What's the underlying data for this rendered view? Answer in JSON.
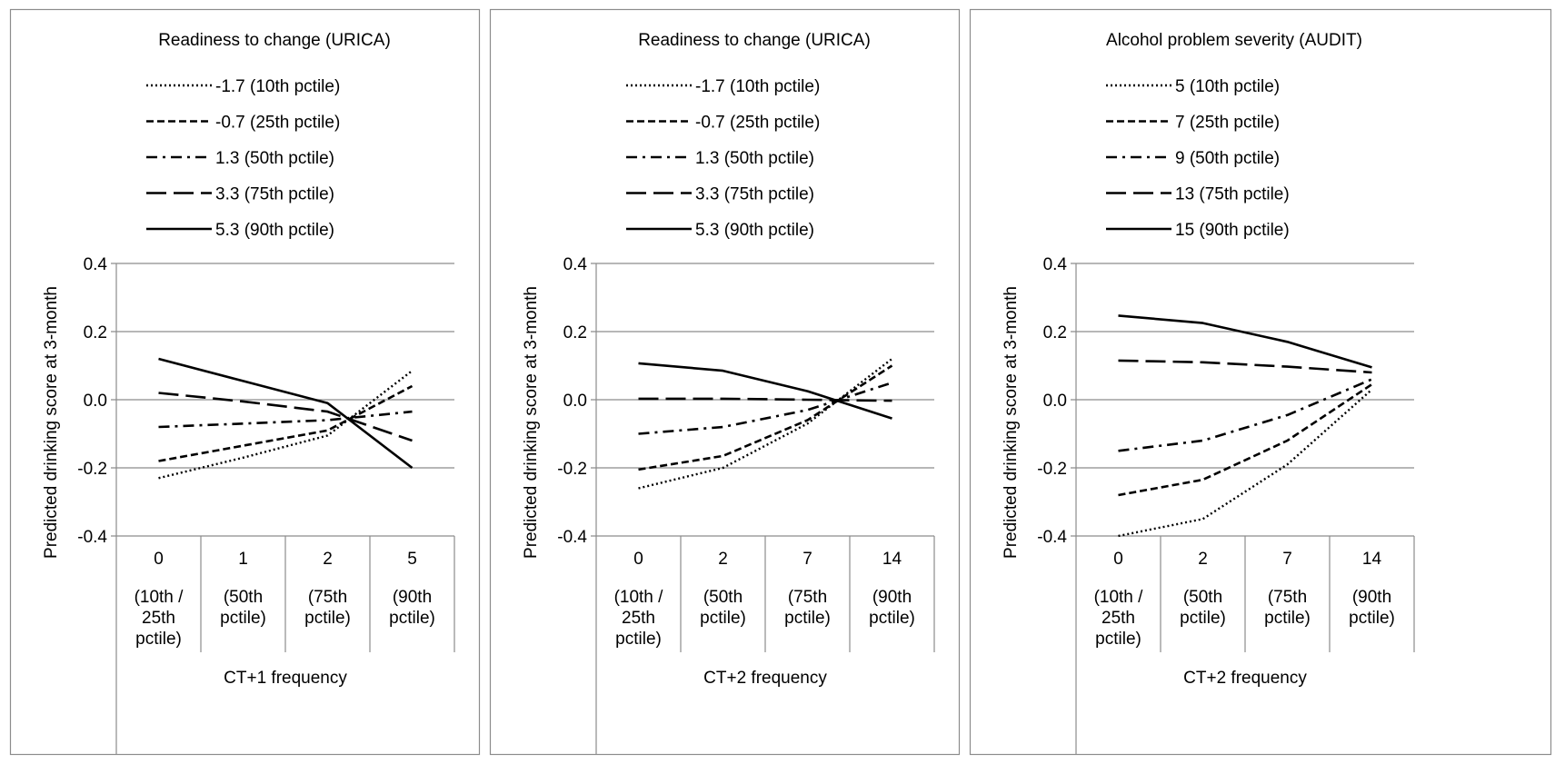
{
  "chart_data": [
    {
      "type": "line",
      "title": "Readiness to change (URICA)",
      "xlabel": "CT+1 frequency",
      "ylabel": "Predicted drinking score at 3-month",
      "ylim": [
        -0.4,
        0.4
      ],
      "y_ticks": [
        "0.4",
        "0.2",
        "0.0",
        "-0.2",
        "-0.4"
      ],
      "legend_position": "top",
      "grid": "horizontal",
      "categories": [
        {
          "value": "0",
          "sub": [
            "(10th /",
            "25th",
            "pctile)"
          ]
        },
        {
          "value": "1",
          "sub": [
            "(50th",
            "pctile)"
          ]
        },
        {
          "value": "2",
          "sub": [
            "(75th",
            "pctile)"
          ]
        },
        {
          "value": "5",
          "sub": [
            "(90th",
            "pctile)"
          ]
        }
      ],
      "series": [
        {
          "name": "-1.7  (10th pctile)",
          "style": "dotted",
          "values": [
            -0.23,
            -0.17,
            -0.105,
            0.085
          ]
        },
        {
          "name": "-0.7  (25th pctile)",
          "style": "short-dash",
          "values": [
            -0.18,
            -0.135,
            -0.09,
            0.04
          ]
        },
        {
          "name": "1.3  (50th pctile)",
          "style": "dash-dot",
          "values": [
            -0.08,
            -0.07,
            -0.06,
            -0.035
          ]
        },
        {
          "name": "3.3  (75th pctile)",
          "style": "long-dash",
          "values": [
            0.02,
            -0.005,
            -0.035,
            -0.12
          ]
        },
        {
          "name": "5.3  (90th pctile)",
          "style": "solid",
          "values": [
            0.12,
            0.055,
            -0.01,
            -0.2
          ]
        }
      ]
    },
    {
      "type": "line",
      "title": "Readiness to change (URICA)",
      "xlabel": "CT+2 frequency",
      "ylabel": "Predicted drinking score at 3-month",
      "ylim": [
        -0.4,
        0.4
      ],
      "y_ticks": [
        "0.4",
        "0.2",
        "0.0",
        "-0.2",
        "-0.4"
      ],
      "legend_position": "top",
      "grid": "horizontal",
      "categories": [
        {
          "value": "0",
          "sub": [
            "(10th /",
            "25th",
            "pctile)"
          ]
        },
        {
          "value": "2",
          "sub": [
            "(50th",
            "pctile)"
          ]
        },
        {
          "value": "7",
          "sub": [
            "(75th",
            "pctile)"
          ]
        },
        {
          "value": "14",
          "sub": [
            "(90th",
            "pctile)"
          ]
        }
      ],
      "series": [
        {
          "name": "-1.7  (10th pctile)",
          "style": "dotted",
          "values": [
            -0.26,
            -0.2,
            -0.07,
            0.12
          ]
        },
        {
          "name": "-0.7  (25th pctile)",
          "style": "short-dash",
          "values": [
            -0.205,
            -0.165,
            -0.06,
            0.1
          ]
        },
        {
          "name": "1.3  (50th pctile)",
          "style": "dash-dot",
          "values": [
            -0.1,
            -0.08,
            -0.03,
            0.05
          ]
        },
        {
          "name": "3.3  (75th pctile)",
          "style": "long-dash",
          "values": [
            0.003,
            0.003,
            0.0,
            -0.003
          ]
        },
        {
          "name": "5.3  (90th pctile)",
          "style": "solid",
          "values": [
            0.107,
            0.085,
            0.025,
            -0.055
          ]
        }
      ]
    },
    {
      "type": "line",
      "title": "Alcohol problem severity (AUDIT)",
      "xlabel": "CT+2 frequency",
      "ylabel": "Predicted drinking score at 3-month",
      "ylim": [
        -0.4,
        0.4
      ],
      "y_ticks": [
        "0.4",
        "0.2",
        "0.0",
        "-0.2",
        "-0.4"
      ],
      "legend_position": "top",
      "grid": "horizontal",
      "categories": [
        {
          "value": "0",
          "sub": [
            "(10th /",
            "25th",
            "pctile)"
          ]
        },
        {
          "value": "2",
          "sub": [
            "(50th",
            "pctile)"
          ]
        },
        {
          "value": "7",
          "sub": [
            "(75th",
            "pctile)"
          ]
        },
        {
          "value": "14",
          "sub": [
            "(90th",
            "pctile)"
          ]
        }
      ],
      "series": [
        {
          "name": "5  (10th pctile)",
          "style": "dotted",
          "values": [
            -0.4,
            -0.35,
            -0.19,
            0.03
          ]
        },
        {
          "name": "7  (25th pctile)",
          "style": "short-dash",
          "values": [
            -0.28,
            -0.235,
            -0.12,
            0.045
          ]
        },
        {
          "name": "9  (50th pctile)",
          "style": "dash-dot",
          "values": [
            -0.15,
            -0.12,
            -0.045,
            0.06
          ]
        },
        {
          "name": "13  (75th pctile)",
          "style": "long-dash",
          "values": [
            0.115,
            0.11,
            0.097,
            0.08
          ]
        },
        {
          "name": "15  (90th pctile)",
          "style": "solid",
          "values": [
            0.247,
            0.225,
            0.17,
            0.095
          ]
        }
      ]
    }
  ]
}
